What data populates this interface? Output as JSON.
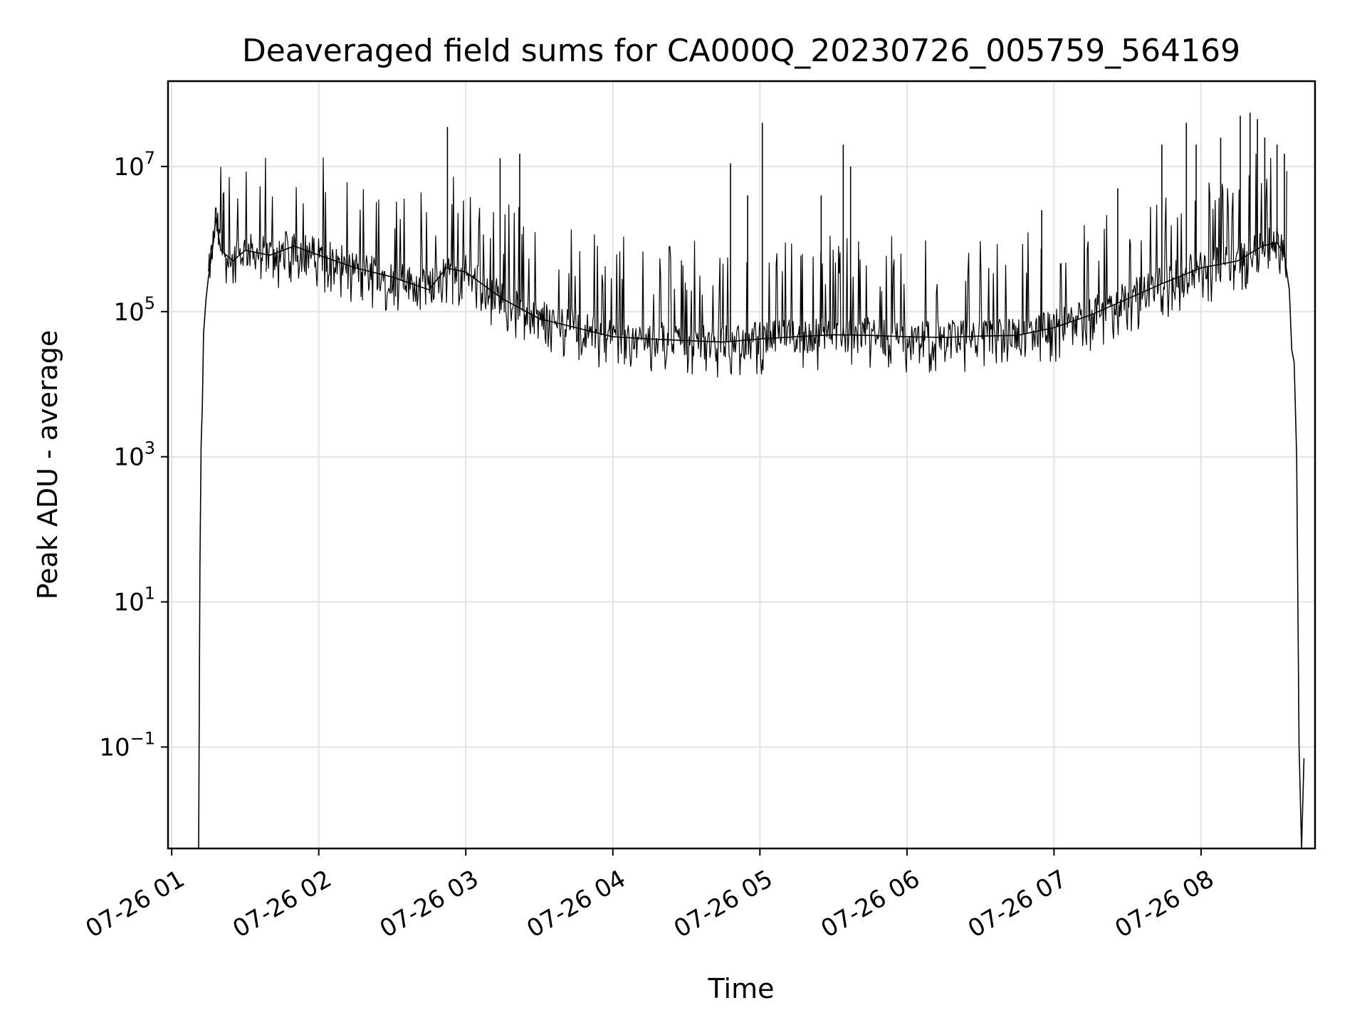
{
  "chart_data": {
    "type": "line",
    "title": "Deaveraged field sums for CA000Q_20230726_005759_564169",
    "xlabel": "Time",
    "ylabel": "Peak ADU - average",
    "y_scale": "log",
    "ylim": [
      0.004,
      150000000.0
    ],
    "xlim": [
      "2023-07-26T00:58:30",
      "2023-07-26T08:46:30"
    ],
    "grid": true,
    "line_color": "#000000",
    "x_ticks": [
      {
        "value": "2023-07-26T01:00:00",
        "label": "07-26 01"
      },
      {
        "value": "2023-07-26T02:00:00",
        "label": "07-26 02"
      },
      {
        "value": "2023-07-26T03:00:00",
        "label": "07-26 03"
      },
      {
        "value": "2023-07-26T04:00:00",
        "label": "07-26 04"
      },
      {
        "value": "2023-07-26T05:00:00",
        "label": "07-26 05"
      },
      {
        "value": "2023-07-26T06:00:00",
        "label": "07-26 06"
      },
      {
        "value": "2023-07-26T07:00:00",
        "label": "07-26 07"
      },
      {
        "value": "2023-07-26T08:00:00",
        "label": "07-26 08"
      }
    ],
    "y_ticks": [
      {
        "value": 10000000,
        "base": "10",
        "exp": "7"
      },
      {
        "value": 100000,
        "base": "10",
        "exp": "5"
      },
      {
        "value": 1000,
        "base": "10",
        "exp": "3"
      },
      {
        "value": 10,
        "base": "10",
        "exp": "1"
      },
      {
        "value": 0.1,
        "base": "10",
        "exp": "−1"
      }
    ],
    "series": [
      {
        "x": [
          "2023-07-26T01:11:00",
          "2023-07-26T01:11:30",
          "2023-07-26T01:12:00",
          "2023-07-26T01:12:30",
          "2023-07-26T01:13:00",
          "2023-07-26T01:14:00",
          "2023-07-26T01:15:00",
          "2023-07-26T01:17:00",
          "2023-07-26T01:18:00",
          "2023-07-26T01:20:00",
          "2023-07-26T01:25:00",
          "2023-07-26T01:30:00",
          "2023-07-26T01:40:00",
          "2023-07-26T01:50:00",
          "2023-07-26T02:00:00",
          "2023-07-26T02:15:00",
          "2023-07-26T02:30:00",
          "2023-07-26T02:45:00",
          "2023-07-26T02:52:00",
          "2023-07-26T03:00:00",
          "2023-07-26T03:15:00",
          "2023-07-26T03:30:00",
          "2023-07-26T03:45:00",
          "2023-07-26T04:00:00",
          "2023-07-26T04:15:00",
          "2023-07-26T04:30:00",
          "2023-07-26T04:45:00",
          "2023-07-26T05:00:00",
          "2023-07-26T05:15:00",
          "2023-07-26T05:30:00",
          "2023-07-26T05:45:00",
          "2023-07-26T06:00:00",
          "2023-07-26T06:15:00",
          "2023-07-26T06:30:00",
          "2023-07-26T06:45:00",
          "2023-07-26T07:00:00",
          "2023-07-26T07:15:00",
          "2023-07-26T07:30:00",
          "2023-07-26T07:45:00",
          "2023-07-26T08:00:00",
          "2023-07-26T08:15:00",
          "2023-07-26T08:25:00",
          "2023-07-26T08:31:00",
          "2023-07-26T08:34:00",
          "2023-07-26T08:36:00",
          "2023-07-26T08:37:00",
          "2023-07-26T08:38:00",
          "2023-07-26T08:39:00",
          "2023-07-26T08:40:00",
          "2023-07-26T08:41:00",
          "2023-07-26T08:42:00"
        ],
        "y": [
          0.004,
          30,
          1500,
          5000,
          50000,
          150000,
          300000,
          900000,
          2000000,
          700000,
          500000,
          700000,
          600000,
          800000,
          600000,
          400000,
          300000,
          200000,
          400000,
          350000,
          150000,
          80000,
          60000,
          45000,
          42000,
          40000,
          38000,
          42000,
          45000,
          48000,
          47000,
          45000,
          44000,
          46000,
          47000,
          60000,
          90000,
          150000,
          250000,
          400000,
          500000,
          800000,
          900000,
          600000,
          200000,
          30000,
          20000,
          1000,
          0.1,
          0.004,
          0.07
        ]
      }
    ],
    "spikes": [
      {
        "x": "2023-07-26T01:21:00",
        "y": 2500000
      },
      {
        "x": "2023-07-26T02:52:30",
        "y": 35000000
      },
      {
        "x": "2023-07-26T03:14:00",
        "y": 13000000
      },
      {
        "x": "2023-07-26T03:22:00",
        "y": 15000000
      },
      {
        "x": "2023-07-26T04:48:00",
        "y": 11000000
      },
      {
        "x": "2023-07-26T05:01:00",
        "y": 40000000
      },
      {
        "x": "2023-07-26T04:55:00",
        "y": 4000000
      },
      {
        "x": "2023-07-26T05:25:00",
        "y": 4000000
      },
      {
        "x": "2023-07-26T05:34:00",
        "y": 20000000
      },
      {
        "x": "2023-07-26T05:37:00",
        "y": 10000000
      },
      {
        "x": "2023-07-26T06:55:00",
        "y": 2500000
      },
      {
        "x": "2023-07-26T07:26:00",
        "y": 5000000
      },
      {
        "x": "2023-07-26T07:44:00",
        "y": 20000000
      },
      {
        "x": "2023-07-26T07:54:00",
        "y": 40000000
      },
      {
        "x": "2023-07-26T07:58:00",
        "y": 20000000
      },
      {
        "x": "2023-07-26T08:08:00",
        "y": 25000000
      },
      {
        "x": "2023-07-26T08:16:00",
        "y": 50000000
      },
      {
        "x": "2023-07-26T08:20:00",
        "y": 55000000
      },
      {
        "x": "2023-07-26T08:23:00",
        "y": 45000000
      },
      {
        "x": "2023-07-26T08:26:00",
        "y": 25000000
      },
      {
        "x": "2023-07-26T08:31:00",
        "y": 20000000
      },
      {
        "x": "2023-07-26T08:34:00",
        "y": 15000000
      }
    ]
  }
}
